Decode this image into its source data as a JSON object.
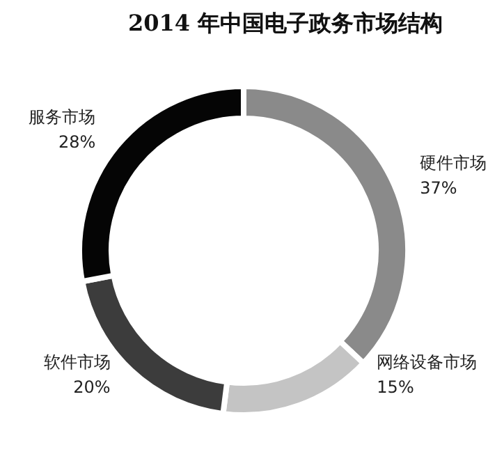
{
  "chart_data": {
    "type": "donut",
    "title": "2014 年中国电子政务市场结构",
    "categories": [
      "硬件市场",
      "网络设备市场",
      "软件市场",
      "服务市场"
    ],
    "values": [
      37,
      15,
      20,
      28
    ],
    "colors": [
      "#8a8a8a",
      "#c4c4c4",
      "#3c3c3c",
      "#050505"
    ],
    "value_labels": [
      "37%",
      "15%",
      "20%",
      "28%"
    ]
  }
}
